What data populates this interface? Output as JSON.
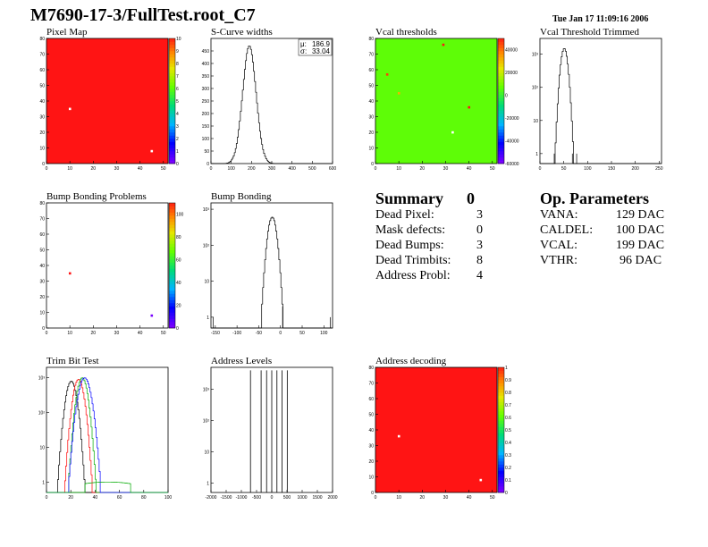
{
  "header": {
    "title": "M7690-17-3/FullTest.root_C7",
    "date": "Tue Jan 17 11:09:16 2006"
  },
  "colors": {
    "map_red": "#ff2020",
    "map_green": "#80ff30",
    "line": "#000000"
  },
  "chart_data": [
    {
      "id": "pixel-map",
      "type": "heatmap",
      "title": "Pixel Map",
      "xlim": [
        0,
        52
      ],
      "ylim": [
        0,
        80
      ],
      "zlim": [
        0,
        10
      ],
      "xticks": [
        "0",
        "10",
        "20",
        "30",
        "40",
        "50"
      ],
      "yticks": [
        "0",
        "10",
        "20",
        "30",
        "40",
        "50",
        "60",
        "70",
        "80"
      ],
      "zticks": [
        "0",
        "1",
        "2",
        "3",
        "4",
        "5",
        "6",
        "7",
        "8",
        "9",
        "10"
      ],
      "fill_value": 10,
      "points": [
        {
          "x": 10,
          "y": 35,
          "z": 0
        },
        {
          "x": 45,
          "y": 8,
          "z": 0
        }
      ]
    },
    {
      "id": "scurve-widths",
      "type": "histogram",
      "title": "S-Curve widths",
      "xlim": [
        0,
        600
      ],
      "ylim": [
        0,
        500
      ],
      "xticks": [
        "0",
        "100",
        "200",
        "300",
        "400",
        "500",
        "600"
      ],
      "yticks": [
        "0",
        "50",
        "100",
        "150",
        "200",
        "250",
        "300",
        "350",
        "400",
        "450"
      ],
      "stats": {
        "mean_label": "μ:",
        "mean": "186.9",
        "rms_label": "σ:",
        "rms": "33.04"
      },
      "peak": {
        "center": 187,
        "sigma": 33,
        "height": 470
      }
    },
    {
      "id": "vcal-thresholds",
      "type": "heatmap",
      "title": "Vcal thresholds",
      "xlim": [
        0,
        52
      ],
      "ylim": [
        0,
        80
      ],
      "zlim": [
        -60000,
        50000
      ],
      "xticks": [
        "0",
        "10",
        "20",
        "30",
        "40",
        "50"
      ],
      "yticks": [
        "0",
        "10",
        "20",
        "30",
        "40",
        "50",
        "60",
        "70",
        "80"
      ],
      "zticks": [
        "40000",
        "20000",
        "0",
        "-20000",
        "-40000",
        "-60000"
      ],
      "fill_value": 5000,
      "points": [
        {
          "x": 29,
          "y": 76,
          "z": 50000
        },
        {
          "x": 5,
          "y": 57,
          "z": 45000
        },
        {
          "x": 10,
          "y": 45,
          "z": 30000
        },
        {
          "x": 40,
          "y": 36,
          "z": 50000
        },
        {
          "x": 33,
          "y": 20,
          "z": -60000
        }
      ]
    },
    {
      "id": "vcal-threshold-trimmed",
      "type": "histogram",
      "title": "Vcal Threshold Trimmed",
      "log_y": true,
      "xlim": [
        0,
        255
      ],
      "ylim": [
        0.5,
        3000
      ],
      "xticks": [
        "0",
        "50",
        "100",
        "150",
        "200",
        "250"
      ],
      "yticks": [
        "1",
        "10",
        "10²",
        "10³"
      ],
      "peak": {
        "center": 50,
        "sigma": 5,
        "height": 1500
      },
      "extra": [
        {
          "x": 30,
          "y": 1
        },
        {
          "x": 68,
          "y": 1
        },
        {
          "x": 77,
          "y": 1
        }
      ]
    },
    {
      "id": "bump-bonding-problems",
      "type": "heatmap",
      "title": "Bump Bonding Problems",
      "xlim": [
        0,
        52
      ],
      "ylim": [
        0,
        80
      ],
      "zlim": [
        0,
        110
      ],
      "xticks": [
        "0",
        "10",
        "20",
        "30",
        "40",
        "50"
      ],
      "yticks": [
        "0",
        "10",
        "20",
        "30",
        "40",
        "50",
        "60",
        "70",
        "80"
      ],
      "zticks": [
        "0",
        "20",
        "40",
        "60",
        "80",
        "100"
      ],
      "fill_value": null,
      "points": [
        {
          "x": 10,
          "y": 35,
          "z": 110
        },
        {
          "x": 45,
          "y": 8,
          "z": 0
        }
      ]
    },
    {
      "id": "bump-bonding",
      "type": "histogram",
      "title": "Bump Bonding",
      "log_y": true,
      "xlim": [
        -160,
        120
      ],
      "ylim": [
        0.5,
        1500
      ],
      "xticks": [
        "-150",
        "-100",
        "-50",
        "0",
        "50",
        "100"
      ],
      "yticks": [
        "1",
        "10",
        "10²",
        "10³"
      ],
      "peak": {
        "center": -20,
        "sigma": 7,
        "height": 600
      },
      "extra": [
        {
          "x": -155,
          "y": 1
        },
        {
          "x": 5,
          "y": 2
        },
        {
          "x": 115,
          "y": 1
        }
      ]
    },
    {
      "id": "trim-bit-test",
      "type": "histogram",
      "title": "Trim Bit Test",
      "log_y": true,
      "xlim": [
        0,
        100
      ],
      "ylim": [
        0.5,
        2000
      ],
      "xticks": [
        "0",
        "20",
        "40",
        "60",
        "80",
        "100"
      ],
      "yticks": [
        "1",
        "10",
        "10²",
        "10³"
      ],
      "series": [
        {
          "color": "#000000",
          "center": 20,
          "sigma": 3,
          "height": 800
        },
        {
          "color": "#ff0000",
          "center": 26,
          "sigma": 3,
          "height": 900
        },
        {
          "color": "#00aa00",
          "center": 29,
          "sigma": 3,
          "height": 1000
        },
        {
          "color": "#0000ff",
          "center": 31,
          "sigma": 3.5,
          "height": 1000
        },
        {
          "color": "#00aa00",
          "center": 50,
          "sigma": 40,
          "height": 1
        }
      ]
    },
    {
      "id": "address-levels",
      "type": "histogram",
      "title": "Address Levels",
      "log_y": true,
      "xlim": [
        -2000,
        2000
      ],
      "ylim": [
        0.5,
        5000
      ],
      "xticks": [
        "-2000",
        "-1500",
        "-1000",
        "-500",
        "0",
        "500",
        "1000",
        "1500",
        "2000"
      ],
      "yticks": [
        "1",
        "10",
        "10²",
        "10³"
      ],
      "spikes": [
        -700,
        -350,
        -170,
        0,
        170,
        340,
        510
      ],
      "spike_height": 4000
    },
    {
      "id": "address-decoding",
      "type": "heatmap",
      "title": "Address decoding",
      "xlim": [
        0,
        52
      ],
      "ylim": [
        0,
        80
      ],
      "zlim": [
        0,
        1
      ],
      "xticks": [
        "0",
        "10",
        "20",
        "30",
        "40",
        "50"
      ],
      "yticks": [
        "0",
        "10",
        "20",
        "30",
        "40",
        "50",
        "60",
        "70",
        "80"
      ],
      "zticks": [
        "0",
        "0.1",
        "0.2",
        "0.3",
        "0.4",
        "0.5",
        "0.6",
        "0.7",
        "0.8",
        "0.9",
        "1"
      ],
      "fill_value": 1,
      "points": [
        {
          "x": 10,
          "y": 36,
          "z": 0
        },
        {
          "x": 45,
          "y": 8,
          "z": 0
        }
      ]
    }
  ],
  "summary": {
    "title": "Summary",
    "total": "0",
    "rows": [
      {
        "label": "Dead Pixel:",
        "value": "3"
      },
      {
        "label": "Mask defects:",
        "value": "0"
      },
      {
        "label": "Dead Bumps:",
        "value": "3"
      },
      {
        "label": "Dead Trimbits:",
        "value": "8"
      },
      {
        "label": "Address Probl:",
        "value": "4"
      }
    ]
  },
  "op_params": {
    "title": "Op. Parameters",
    "rows": [
      {
        "label": "VANA:",
        "value": "129 DAC"
      },
      {
        "label": "CALDEL:",
        "value": "100 DAC"
      },
      {
        "label": "VCAL:",
        "value": "199 DAC"
      },
      {
        "label": "VTHR:",
        "value": "96 DAC"
      }
    ]
  }
}
